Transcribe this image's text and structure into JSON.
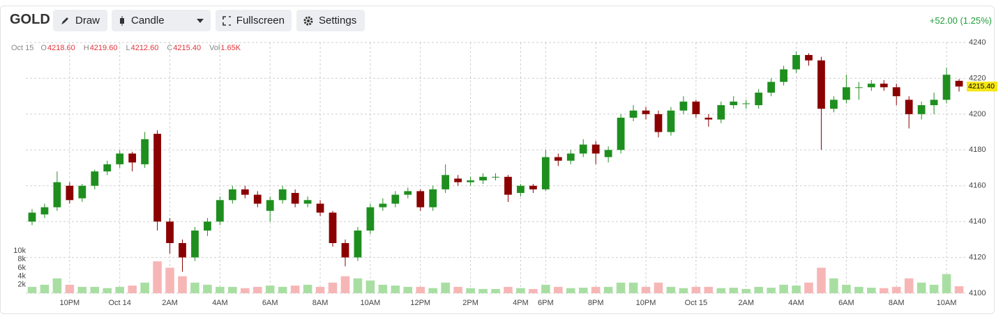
{
  "toolbar": {
    "symbol": "GOLD",
    "buttons": [
      "Draw",
      "Candle",
      "Fullscreen",
      "Settings"
    ],
    "change": "+52.00 (1.25%)"
  },
  "chart_data": {
    "type": "candlestick",
    "info": {
      "date": "Oct 15",
      "items": [
        {
          "label": "O",
          "value": "4218.60"
        },
        {
          "label": "H",
          "value": "4219.60"
        },
        {
          "label": "L",
          "value": "4212.60"
        },
        {
          "label": "C",
          "value": "4215.40"
        },
        {
          "label": "Vol",
          "value": "1.65K"
        }
      ]
    },
    "last_price_label": "4215.40",
    "up_color": "#1e8f1e",
    "down_color": "#8b0000",
    "volume_up_color": "#a9dea3",
    "volume_down_color": "#f7b6b6",
    "grid": true,
    "xlim": [
      -0.5,
      74.5
    ],
    "xticks": [
      {
        "value": 3,
        "label": "10PM"
      },
      {
        "value": 7,
        "label": "Oct 14"
      },
      {
        "value": 11,
        "label": "2AM"
      },
      {
        "value": 15,
        "label": "4AM"
      },
      {
        "value": 19,
        "label": "6AM"
      },
      {
        "value": 23,
        "label": "8AM"
      },
      {
        "value": 27,
        "label": "10AM"
      },
      {
        "value": 31,
        "label": "12PM"
      },
      {
        "value": 35,
        "label": "2PM"
      },
      {
        "value": 39,
        "label": "4PM"
      },
      {
        "value": 41,
        "label": "6PM"
      },
      {
        "value": 45,
        "label": "8PM"
      },
      {
        "value": 49,
        "label": "10PM"
      },
      {
        "value": 53,
        "label": "Oct 15"
      },
      {
        "value": 57,
        "label": "2AM"
      },
      {
        "value": 61,
        "label": "4AM"
      },
      {
        "value": 65,
        "label": "6AM"
      },
      {
        "value": 69,
        "label": "8AM"
      },
      {
        "value": 73,
        "label": "10AM"
      }
    ],
    "ylim": [
      4100,
      4240
    ],
    "yticks": [
      4100,
      4120,
      4140,
      4160,
      4180,
      4200,
      4220,
      4240
    ],
    "volume_ylim": [
      0,
      59000
    ],
    "volume_ticks": [
      {
        "value": 2000,
        "label": "2k"
      },
      {
        "value": 4000,
        "label": "4k"
      },
      {
        "value": 6000,
        "label": "6k"
      },
      {
        "value": 8000,
        "label": "8k"
      },
      {
        "value": 10000,
        "label": "10k"
      }
    ],
    "open": [
      4140,
      4144,
      4148,
      4160,
      4153,
      4160,
      4168,
      4172,
      4178,
      4172,
      4189,
      4140,
      4128,
      4120,
      4135,
      4140,
      4152,
      4158,
      4155,
      4146,
      4152,
      4156,
      4150,
      4150,
      4145,
      4128,
      4120,
      4135,
      4148,
      4150,
      4155,
      4157,
      4148,
      4158,
      4164,
      4162,
      4163,
      4165,
      4165,
      4156,
      4160,
      4158,
      4176,
      4174,
      4178,
      4183,
      4176,
      4180,
      4198,
      4202,
      4200,
      4190,
      4202,
      4207,
      4198,
      4197,
      4205,
      4206,
      4205,
      4212,
      4218,
      4225,
      4233,
      4230,
      4203,
      4208,
      4215,
      4215,
      4217,
      4215,
      4208,
      4200,
      4205,
      4208,
      4218.6
    ],
    "high": [
      4147,
      4150,
      4168,
      4162,
      4161,
      4169,
      4174,
      4180,
      4179,
      4190,
      4191,
      4142,
      4130,
      4137,
      4142,
      4154,
      4160,
      4160,
      4157,
      4154,
      4160,
      4158,
      4154,
      4152,
      4146,
      4130,
      4137,
      4150,
      4153,
      4157,
      4159,
      4158,
      4160,
      4172,
      4166,
      4165,
      4167,
      4167,
      4166,
      4161,
      4161,
      4180,
      4178,
      4180,
      4186,
      4185,
      4182,
      4200,
      4205,
      4204,
      4202,
      4204,
      4210,
      4208,
      4200,
      4207,
      4210,
      4208,
      4214,
      4220,
      4227,
      4235,
      4234,
      4232,
      4210,
      4222,
      4218,
      4219,
      4219,
      4217,
      4210,
      4207,
      4212,
      4226,
      4219.6
    ],
    "low": [
      4138,
      4142,
      4146,
      4150,
      4151,
      4158,
      4166,
      4170,
      4168,
      4170,
      4135,
      4122,
      4112,
      4118,
      4132,
      4138,
      4150,
      4153,
      4148,
      4140,
      4150,
      4148,
      4148,
      4143,
      4126,
      4115,
      4118,
      4133,
      4146,
      4148,
      4153,
      4146,
      4146,
      4156,
      4160,
      4160,
      4161,
      4163,
      4151,
      4154,
      4156,
      4157,
      4171,
      4172,
      4176,
      4172,
      4173,
      4178,
      4196,
      4197,
      4187,
      4188,
      4200,
      4198,
      4193,
      4195,
      4203,
      4203,
      4203,
      4210,
      4216,
      4223,
      4227,
      4180,
      4201,
      4206,
      4208,
      4213,
      4213,
      4205,
      4192,
      4197,
      4200,
      4206,
      4212.6
    ],
    "close": [
      4145,
      4148,
      4162,
      4152,
      4160,
      4168,
      4172,
      4178,
      4173,
      4186,
      4140,
      4128,
      4120,
      4135,
      4140,
      4152,
      4158,
      4155,
      4150,
      4152,
      4158,
      4150,
      4152,
      4145,
      4128,
      4120,
      4135,
      4148,
      4150,
      4155,
      4157,
      4148,
      4158,
      4166,
      4162,
      4163,
      4165,
      4165,
      4155,
      4160,
      4158,
      4176,
      4174,
      4178,
      4183,
      4178,
      4180,
      4198,
      4202,
      4200,
      4190,
      4202,
      4207,
      4200,
      4197,
      4205,
      4207,
      4206,
      4212,
      4218,
      4225,
      4233,
      4230,
      4203,
      4208,
      4215,
      4215,
      4217,
      4215,
      4210,
      4200,
      4205,
      4208,
      4222,
      4215.4
    ],
    "volume": [
      1500,
      2000,
      3500,
      2000,
      1500,
      1500,
      1200,
      1500,
      1800,
      2500,
      7500,
      6000,
      4000,
      2500,
      2000,
      1500,
      1500,
      1200,
      1500,
      1800,
      1500,
      1800,
      2000,
      1500,
      2500,
      4000,
      3500,
      3000,
      2000,
      1800,
      1500,
      1500,
      1200,
      2500,
      1500,
      1200,
      1000,
      1000,
      1500,
      1200,
      1000,
      2000,
      1500,
      1200,
      1300,
      1500,
      1500,
      2500,
      2500,
      1500,
      2500,
      1500,
      1200,
      1500,
      1500,
      1200,
      1300,
      1000,
      1500,
      1300,
      2000,
      1800,
      2500,
      6000,
      3500,
      2000,
      1500,
      1300,
      1200,
      1500,
      3500,
      2500,
      2000,
      4500,
      1650
    ]
  }
}
